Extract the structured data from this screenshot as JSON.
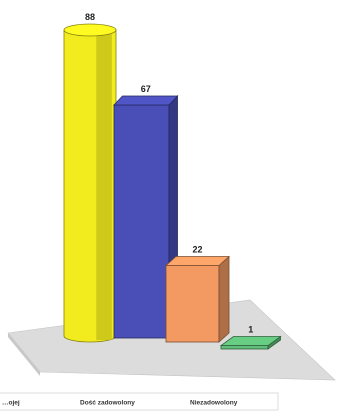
{
  "chart_data": {
    "type": "bar",
    "style": "3d-cylinder-and-box",
    "categories": [
      "…ojej",
      "Dość zadowolony",
      "Niezadowolony",
      ""
    ],
    "values": [
      88,
      67,
      22,
      1
    ],
    "value_labels": [
      "88",
      "67",
      "22",
      "1"
    ],
    "colors": [
      "#f2ec1e",
      "#4a4fb8",
      "#f29a62",
      "#5fbf7a"
    ],
    "shapes": [
      "cylinder",
      "box",
      "box",
      "box"
    ],
    "title": "",
    "xlabel": "",
    "ylabel": "",
    "ylim": [
      0,
      88
    ],
    "grid": false,
    "legend": {
      "placement": "bottom",
      "items": [
        "…ojej",
        "Dość zadowolony",
        "Niezadowolony"
      ]
    }
  }
}
